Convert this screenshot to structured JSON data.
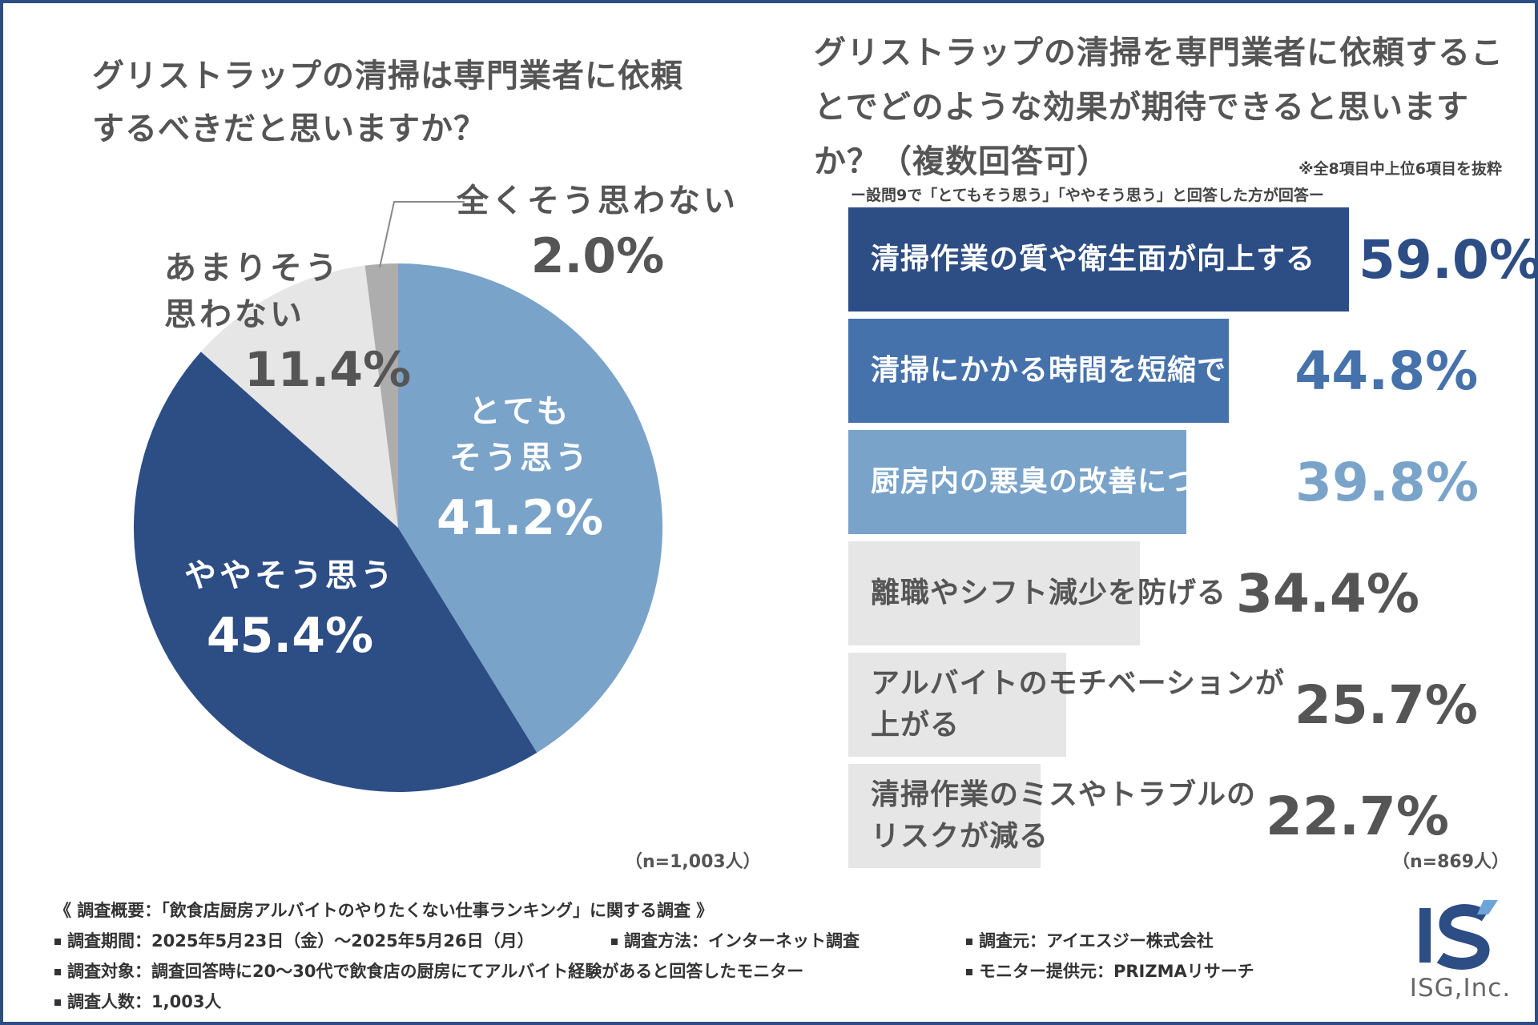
{
  "left_chart": {
    "title": "グリストラップの清掃は専門業者に依頼するべきだと思いますか？",
    "n_label": "（n=1,003人）"
  },
  "right_chart": {
    "title": "グリストラップの清掃を専門業者に依頼することでどのような効果が期待できると思いますか？（複数回答可）",
    "note": "※全8項目中上位6項目を抜粋",
    "subtitle": "ー設問9で「とてもそう思う」「ややそう思う」と回答した方が回答ー",
    "n_label": "（n=869人）"
  },
  "chart_data": [
    {
      "type": "pie",
      "title": "グリストラップの清掃は専門業者に依頼するべきだと思いますか？",
      "categories": [
        "とてもそう思う",
        "ややそう思う",
        "あまりそう思わない",
        "全くそう思わない"
      ],
      "values": [
        41.2,
        45.4,
        11.4,
        2.0
      ],
      "value_labels": [
        "41.2%",
        "45.4%",
        "11.4%",
        "2.0%"
      ],
      "label_lines": [
        [
          "とても",
          "そう思う"
        ],
        [
          "ややそう思う"
        ],
        [
          "あまりそう",
          "思わない"
        ],
        [
          "全くそう思わない"
        ]
      ],
      "colors": [
        "#7aa3c9",
        "#2d4d85",
        "#e6e6e6",
        "#adadad"
      ],
      "label_colors": [
        "#ffffff",
        "#ffffff",
        "#555555",
        "#555555"
      ],
      "start_angle_deg": 0,
      "direction": "clockwise"
    },
    {
      "type": "bar",
      "orientation": "horizontal",
      "title": "グリストラップの清掃を専門業者に依頼することでどのような効果が期待できると思いますか？（複数回答可）",
      "categories": [
        "清掃作業の質や衛生面が向上する",
        "清掃にかかる時間を短縮できる",
        "厨房内の悪臭の改善につながる",
        "離職やシフト減少を防げる",
        "アルバイトのモチベーションが上がる",
        "清掃作業のミスやトラブルのリスクが減る"
      ],
      "label_lines": [
        [
          "清掃作業の質や衛生面が向上する"
        ],
        [
          "清掃にかかる時間を短縮できる"
        ],
        [
          "厨房内の悪臭の改善につながる"
        ],
        [
          "離職やシフト減少を防げる"
        ],
        [
          "アルバイトのモチベーションが",
          "上がる"
        ],
        [
          "清掃作業のミスやトラブルの",
          "リスクが減る"
        ]
      ],
      "values": [
        59.0,
        44.8,
        39.8,
        34.4,
        25.7,
        22.7
      ],
      "value_labels": [
        "59.0%",
        "44.8%",
        "39.8%",
        "34.4%",
        "25.7%",
        "22.7%"
      ],
      "colors": [
        "#2d4d85",
        "#4672ab",
        "#7aa3c9",
        "#e6e6e6",
        "#e6e6e6",
        "#e6e6e6"
      ],
      "label_colors": [
        "#ffffff",
        "#ffffff",
        "#ffffff",
        "#555555",
        "#555555",
        "#555555"
      ],
      "value_colors": [
        "#2d4d85",
        "#4672ab",
        "#7aa3c9",
        "#555555",
        "#555555",
        "#555555"
      ],
      "xlim": [
        0,
        59.0
      ]
    }
  ],
  "survey": {
    "heading": "《 調査概要：「飲食店厨房アルバイトのやりたくない仕事ランキング」に関する調査 》",
    "period": "調査期間：2025年5月23日（金）〜2025年5月26日（月）",
    "method": "調査方法：インターネット調査",
    "source": "調査元：アイエスジー株式会社",
    "target": "調査対象：調査回答時に20〜30代で飲食店の厨房にてアルバイト経験があると回答したモニター",
    "provider": "モニター提供元：PRIZMAリサーチ",
    "count": "調査人数：1,003人"
  },
  "logo": {
    "text": "ISG,Inc.",
    "mark": "IS",
    "color": "#2d4d85"
  }
}
